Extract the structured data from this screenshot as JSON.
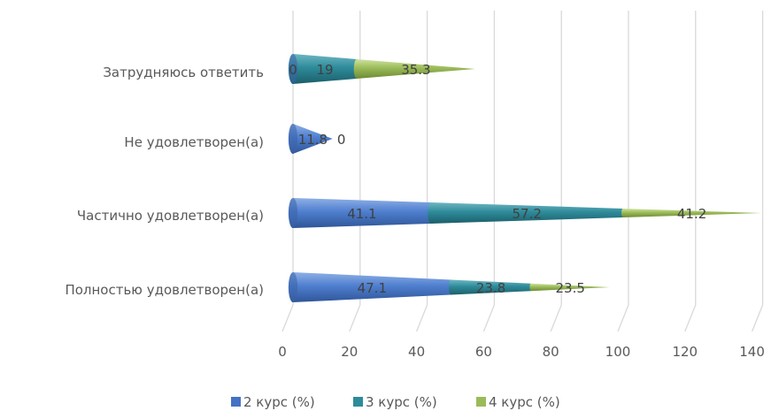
{
  "chart_data": {
    "type": "bar",
    "orientation": "horizontal",
    "stacked": true,
    "shape": "cone",
    "categories": [
      "Полностью удовлетворен(а)",
      "Частично удовлетворен(а)",
      "Не удовлетворен(а)",
      "Затрудняюсь ответить"
    ],
    "series": [
      {
        "name": "2 курс (%)",
        "values": [
          47.1,
          41.1,
          11.8,
          0
        ],
        "color": "#4472c4"
      },
      {
        "name": "3 курс (%)",
        "values": [
          23.8,
          57.2,
          0,
          19
        ],
        "color": "#2e8b9a"
      },
      {
        "name": "4 курс (%)",
        "values": [
          23.5,
          41.2,
          0,
          35.3
        ],
        "color": "#9bbb59"
      }
    ],
    "data_labels": [
      [
        "47.1",
        "23.8",
        "23.5"
      ],
      [
        "41.1",
        "57.2",
        "41.2"
      ],
      [
        "11.8",
        "0",
        ""
      ],
      [
        "0",
        "19",
        "35.3"
      ]
    ],
    "xticks": [
      "0",
      "20",
      "40",
      "60",
      "80",
      "100",
      "120",
      "140"
    ],
    "xlim": [
      0,
      140
    ],
    "grid": true,
    "legend_position": "bottom"
  }
}
